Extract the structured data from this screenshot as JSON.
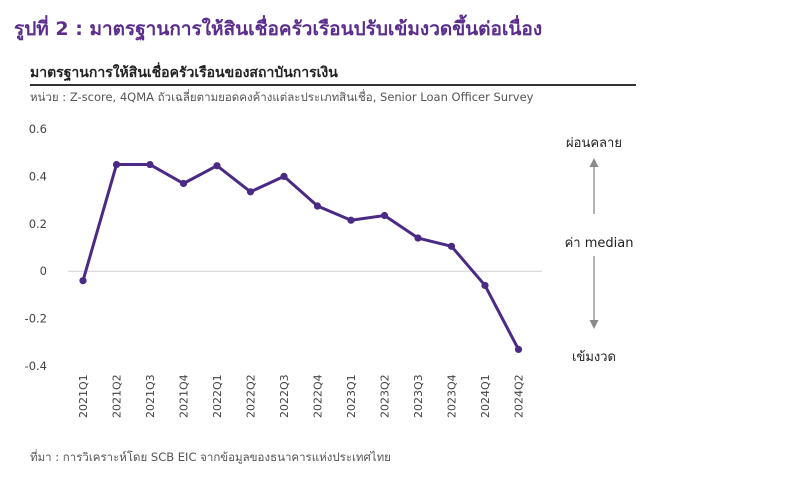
{
  "figure_title": "รูปที่ 2 : มาตรฐานการให้สินเชื่อครัวเรือนปรับเข้มงวดขึ้นต่อเนื่อง",
  "source": "ที่มา : การวิเคราะห์โดย SCB EIC จากข้อมูลของธนาคารแห่งประเทศไทย",
  "colors": {
    "title": "#5b2d8c",
    "series": "#4a2a85",
    "arrow": "#8a8a8a"
  },
  "chart_data": {
    "type": "line",
    "title": "มาตรฐานการให้สินเชื่อครัวเรือนของสถาบันการเงิน",
    "subtitle": "หน่วย : Z-score, 4QMA ถัวเฉลี่ยตามยอดคงค้างแต่ละประเภทสินเชื่อ, Senior Loan Officer Survey",
    "xlabel": "",
    "ylabel": "",
    "ylim": [
      -0.4,
      0.6
    ],
    "yticks": [
      "0.6",
      "0.4",
      "0.2",
      "0",
      "-0.2",
      "-0.4"
    ],
    "grid": false,
    "categories": [
      "2021Q1",
      "2021Q2",
      "2021Q3",
      "2021Q4",
      "2022Q1",
      "2022Q2",
      "2022Q3",
      "2022Q4",
      "2023Q1",
      "2023Q2",
      "2023Q3",
      "2023Q4",
      "2024Q1",
      "2024Q2"
    ],
    "series": [
      {
        "values": [
          -0.04,
          0.45,
          0.45,
          0.37,
          0.445,
          0.335,
          0.4,
          0.275,
          0.215,
          0.235,
          0.14,
          0.105,
          -0.06,
          -0.33
        ]
      }
    ],
    "annotations": {
      "top": "ผ่อนคลาย",
      "middle": "ค่า median",
      "bottom": "เข้มงวด"
    }
  }
}
